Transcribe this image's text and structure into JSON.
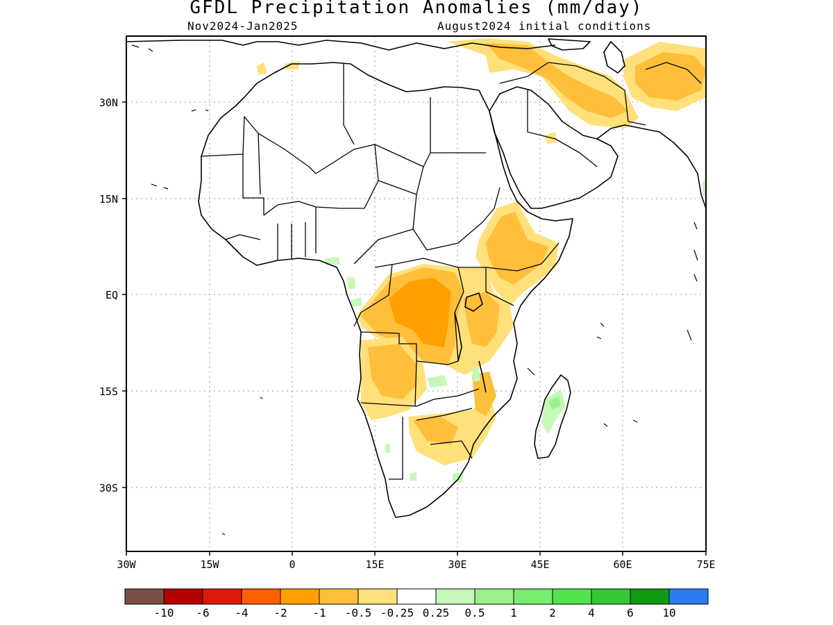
{
  "title": "GFDL Precipitation Anomalies (mm/day)",
  "period": "Nov2024-Jan2025",
  "init": "August2024 initial conditions",
  "lat_axis": [
    "30N",
    "15N",
    "EQ",
    "15S",
    "30S"
  ],
  "lon_axis": [
    "30W",
    "15W",
    "0",
    "15E",
    "30E",
    "45E",
    "60E",
    "75E"
  ],
  "colorbar": {
    "colors": [
      "#7b4f45",
      "#b30000",
      "#dd1a0a",
      "#ff5f00",
      "#ff9f00",
      "#ffbf3a",
      "#ffe07a",
      "#ffffff",
      "#c6f8b8",
      "#9cf08c",
      "#78ec6c",
      "#50e44a",
      "#34c832",
      "#109a10",
      "#2a7df0"
    ],
    "labels": [
      "-10",
      "-6",
      "-4",
      "-2",
      "-1",
      "-0.5",
      "-0.25",
      "0.25",
      "0.5",
      "1",
      "2",
      "4",
      "6",
      "10"
    ]
  },
  "anomaly_colors": {
    "dry_strong": "#ff9f00",
    "dry_moderate": "#ffbf3a",
    "dry_weak": "#ffe07a",
    "wet_weak": "#c6f8b8",
    "wet_moderate": "#9cf08c"
  }
}
